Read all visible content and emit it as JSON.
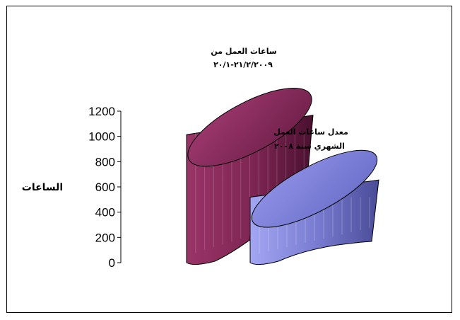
{
  "chart_data": {
    "type": "bar",
    "style": "3d-cylinder",
    "ylabel": "الساعات",
    "ylim": [
      0,
      1200
    ],
    "yticks": [
      "0",
      "200",
      "400",
      "600",
      "800",
      "1000",
      "1200"
    ],
    "grid": false,
    "series": [
      {
        "name": "ساعات العمل من",
        "name_line2": "٢١/٢/٢٠٠٩-٢٠/١",
        "value": 1140,
        "color": "#8a2a5c"
      },
      {
        "name": "معدل ساعات العمل",
        "name_line2": "الشهري سنة ٢٠٠٨",
        "value": 630,
        "color": "#7f82d8"
      }
    ]
  }
}
